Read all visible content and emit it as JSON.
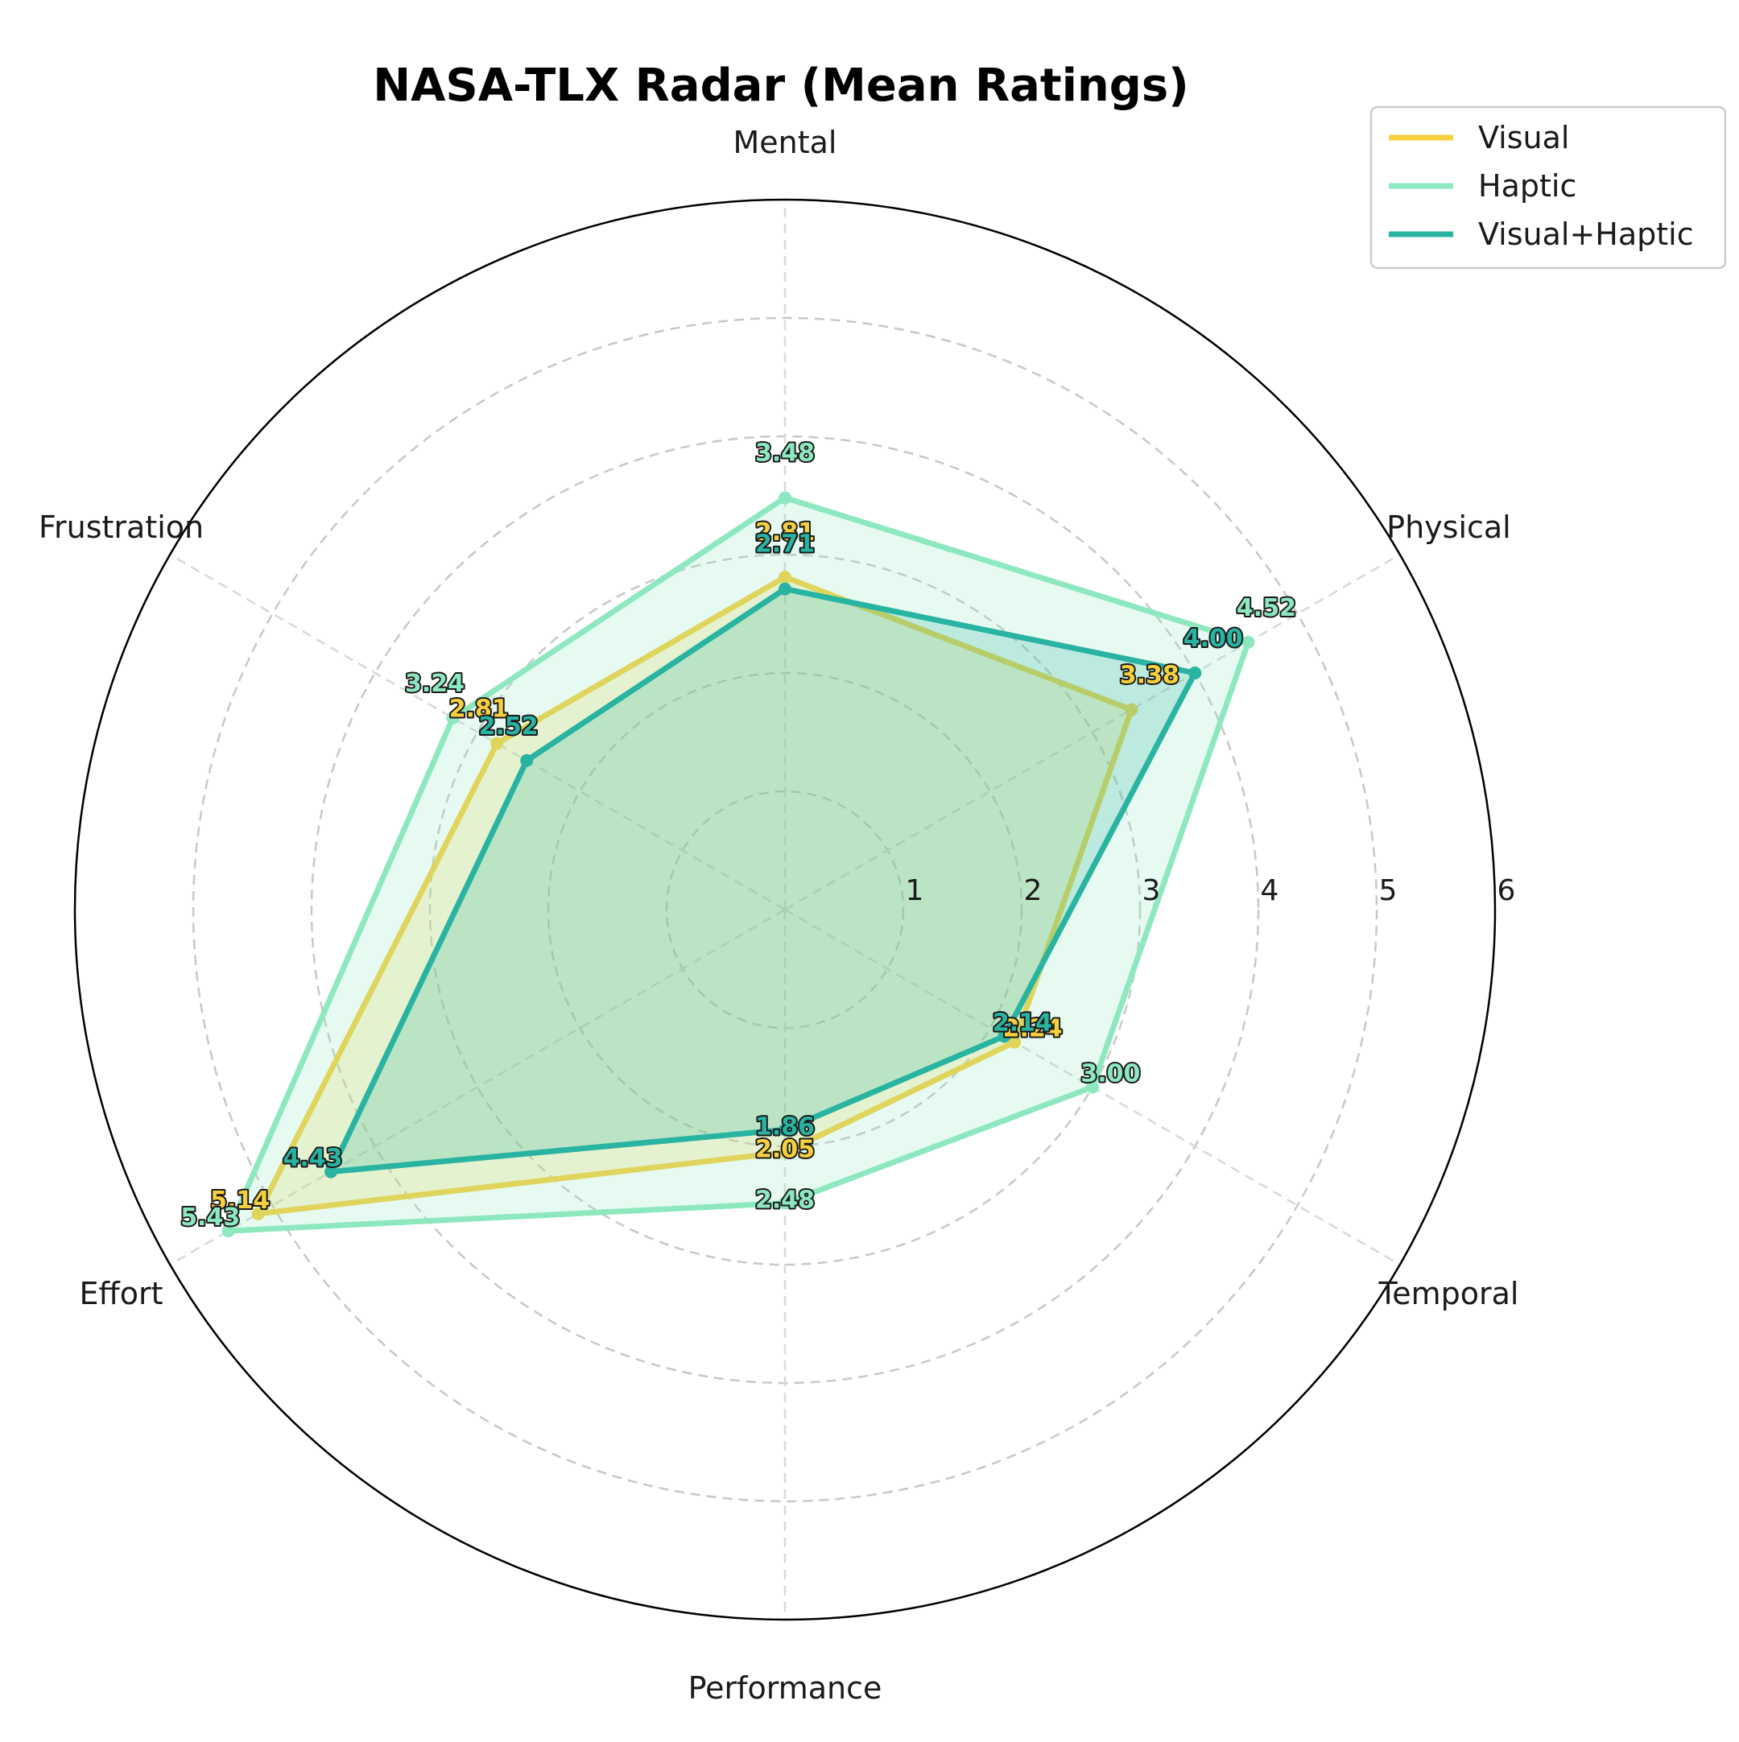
{
  "chart_data": {
    "type": "radar",
    "title": "NASA-TLX Radar (Mean Ratings)",
    "axes": [
      "Mental",
      "Physical",
      "Temporal",
      "Performance",
      "Effort",
      "Frustration"
    ],
    "rlim": [
      0,
      6
    ],
    "rticks": [
      "1",
      "2",
      "3",
      "4",
      "5",
      "6"
    ],
    "grid": true,
    "legend_position": "top-right",
    "series": [
      {
        "name": "Visual",
        "color": "#f7d040",
        "values": [
          2.81,
          3.38,
          2.24,
          2.05,
          5.14,
          2.81
        ]
      },
      {
        "name": "Haptic",
        "color": "#8de8c0",
        "values": [
          3.48,
          4.52,
          3.0,
          2.48,
          5.43,
          3.24
        ]
      },
      {
        "name": "Visual+Haptic",
        "color": "#29b3a1",
        "values": [
          2.71,
          4.0,
          2.14,
          1.86,
          4.43,
          2.52
        ]
      }
    ]
  }
}
